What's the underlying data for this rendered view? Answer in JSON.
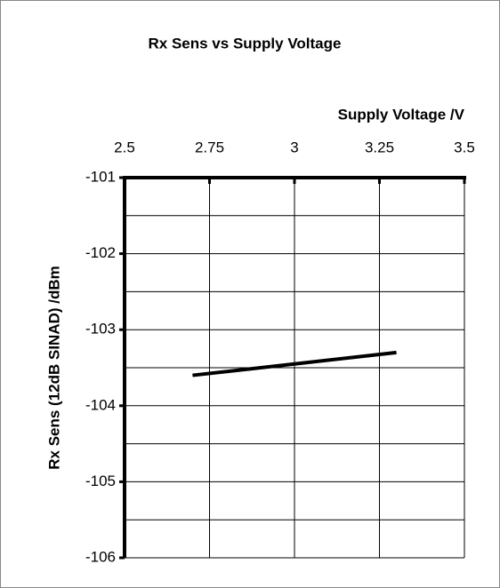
{
  "chart_data": {
    "type": "line",
    "title": "Rx Sens vs Supply Voltage",
    "x_label": "Supply Voltage /V",
    "y_label": "Rx Sens (12dB SINAD) /dBm",
    "x": [
      2.7,
      3.0,
      3.3
    ],
    "series": [
      {
        "name": "Rx Sens",
        "color": "#000000",
        "values": [
          -103.6,
          -103.45,
          -103.3
        ]
      }
    ],
    "xlim": [
      2.5,
      3.5
    ],
    "xticks": [
      2.5,
      2.75,
      3,
      3.25,
      3.5
    ],
    "ylim": [
      -106,
      -101
    ],
    "yticks": [
      -106,
      -105,
      -104,
      -103,
      -102,
      -101
    ],
    "y_minor_ticks": [
      -105.5,
      -104.5,
      -103.5,
      -102.5,
      -101.5
    ],
    "x_axis_position": "top",
    "grid": true
  }
}
